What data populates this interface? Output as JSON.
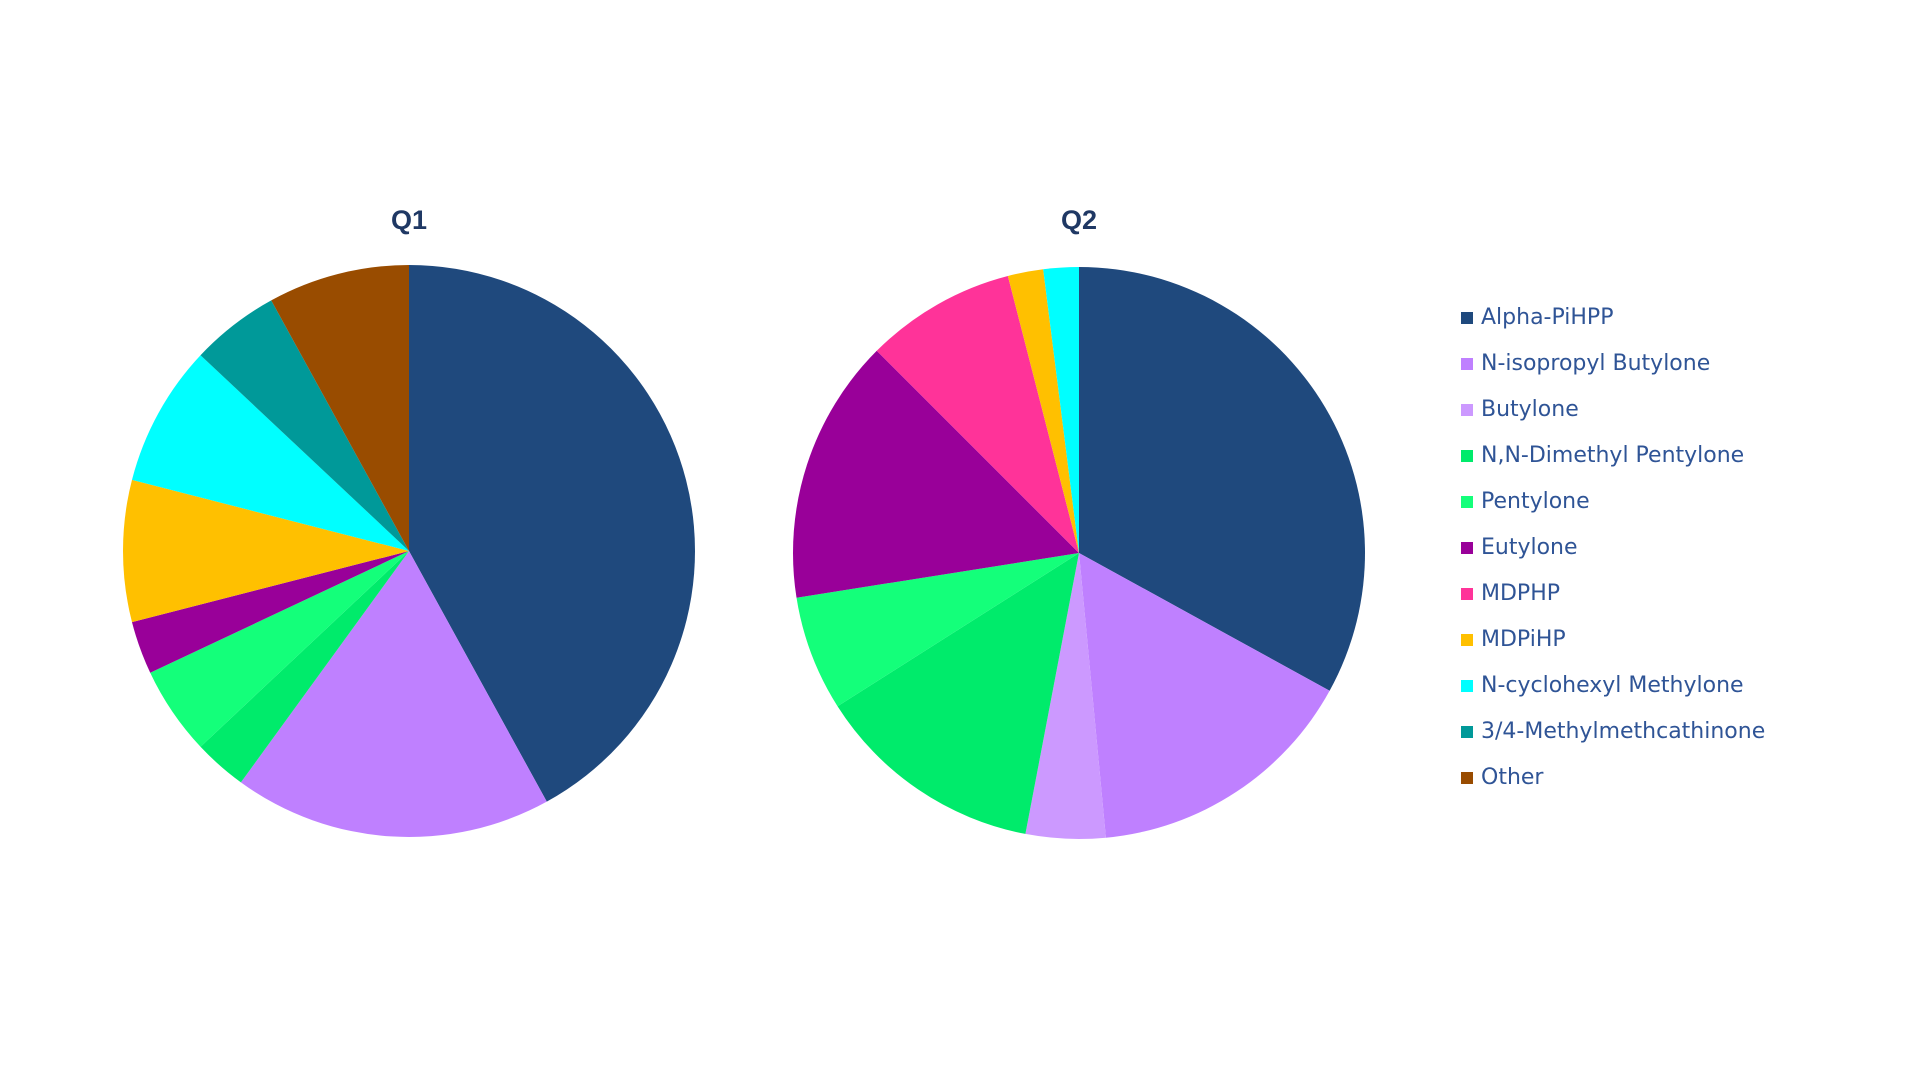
{
  "legend": {
    "entries": [
      "Alpha-PiHPP",
      "N-isopropyl Butylone",
      "Butylone",
      "N,N-Dimethyl Pentylone",
      "Pentylone",
      "Eutylone",
      "MDPHP",
      "MDPiHP",
      "N-cyclohexyl Methylone",
      "3/4-Methylmethcathinone",
      "Other"
    ],
    "colors": [
      "#1F497D",
      "#BF80FF",
      "#CC99FF",
      "#00EB6B",
      "#14FF7A",
      "#990099",
      "#FF3399",
      "#FFC000",
      "#00FFFF",
      "#009999",
      "#994C00"
    ]
  },
  "chart_data": [
    {
      "type": "pie",
      "title": "Q1",
      "values": [
        42,
        18,
        0,
        3,
        5,
        3,
        0,
        8,
        8,
        5,
        8
      ]
    },
    {
      "type": "pie",
      "title": "Q2",
      "values": [
        33,
        15.5,
        4.5,
        13,
        6.5,
        15,
        8.5,
        2,
        2,
        0,
        0
      ]
    }
  ]
}
